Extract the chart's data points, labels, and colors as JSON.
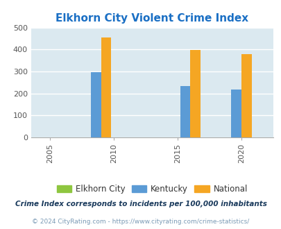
{
  "title": "Elkhorn City Violent Crime Index",
  "title_color": "#1a6fc4",
  "plot_bg_color": "#dbe9f0",
  "fig_bg_color": "#ffffff",
  "bar_groups": [
    {
      "year": 2009,
      "elkhorn_city": null,
      "kentucky": 298,
      "national": 455
    },
    {
      "year": 2016,
      "elkhorn_city": null,
      "kentucky": 234,
      "national": 397
    },
    {
      "year": 2020,
      "elkhorn_city": null,
      "kentucky": 218,
      "national": 379
    }
  ],
  "xtick_positions": [
    2005,
    2010,
    2015,
    2020
  ],
  "xlim": [
    2003.5,
    2022.5
  ],
  "ylim": [
    0,
    500
  ],
  "yticks": [
    0,
    100,
    200,
    300,
    400,
    500
  ],
  "colors": {
    "elkhorn_city": "#8ec63f",
    "kentucky": "#5b9bd5",
    "national": "#f5a623"
  },
  "bar_width": 0.8,
  "legend_labels": [
    "Elkhorn City",
    "Kentucky",
    "National"
  ],
  "footnote1": "Crime Index corresponds to incidents per 100,000 inhabitants",
  "footnote2": "© 2024 CityRating.com - https://www.cityrating.com/crime-statistics/",
  "footnote1_color": "#1a3a5c",
  "footnote2_color": "#7a9ab5"
}
